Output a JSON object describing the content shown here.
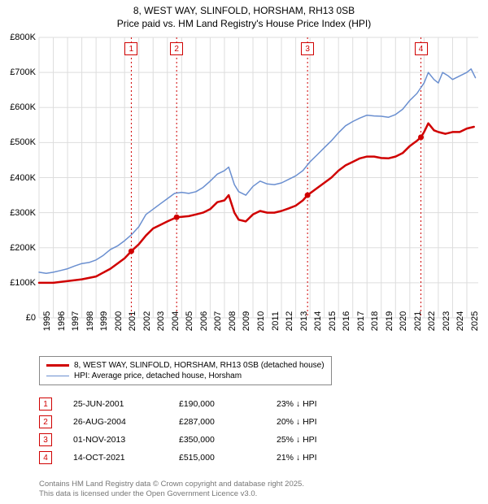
{
  "title_line1": "8, WEST WAY, SLINFOLD, HORSHAM, RH13 0SB",
  "title_line2": "Price paid vs. HM Land Registry's House Price Index (HPI)",
  "chart": {
    "x_min_year": 1995,
    "x_max_year": 2025.8,
    "x_ticks": [
      1995,
      1996,
      1997,
      1998,
      1999,
      2000,
      2001,
      2002,
      2003,
      2004,
      2005,
      2006,
      2007,
      2008,
      2009,
      2010,
      2011,
      2012,
      2013,
      2014,
      2015,
      2016,
      2017,
      2018,
      2019,
      2020,
      2021,
      2022,
      2023,
      2024,
      2025
    ],
    "y_min": 0,
    "y_max": 800000,
    "y_ticks": [
      0,
      100000,
      200000,
      300000,
      400000,
      500000,
      600000,
      700000,
      800000
    ],
    "y_tick_labels": [
      "£0",
      "£100K",
      "£200K",
      "£300K",
      "£400K",
      "£500K",
      "£600K",
      "£700K",
      "£800K"
    ],
    "grid_color": "#dddddd",
    "background_color": "#ffffff",
    "series_property": {
      "label": "8, WEST WAY, SLINFOLD, HORSHAM, RH13 0SB (detached house)",
      "color": "#d00000",
      "width": 2.5,
      "points": [
        [
          1995.0,
          100000
        ],
        [
          1996.0,
          100000
        ],
        [
          1997.0,
          105000
        ],
        [
          1998.0,
          110000
        ],
        [
          1999.0,
          118000
        ],
        [
          2000.0,
          140000
        ],
        [
          2000.5,
          155000
        ],
        [
          2001.0,
          170000
        ],
        [
          2001.47,
          190000
        ],
        [
          2002.0,
          210000
        ],
        [
          2002.5,
          235000
        ],
        [
          2003.0,
          255000
        ],
        [
          2003.5,
          265000
        ],
        [
          2004.0,
          275000
        ],
        [
          2004.65,
          287000
        ],
        [
          2005.0,
          288000
        ],
        [
          2005.5,
          290000
        ],
        [
          2006.0,
          295000
        ],
        [
          2006.5,
          300000
        ],
        [
          2007.0,
          310000
        ],
        [
          2007.5,
          330000
        ],
        [
          2008.0,
          335000
        ],
        [
          2008.3,
          350000
        ],
        [
          2008.7,
          300000
        ],
        [
          2009.0,
          280000
        ],
        [
          2009.5,
          275000
        ],
        [
          2010.0,
          295000
        ],
        [
          2010.5,
          305000
        ],
        [
          2011.0,
          300000
        ],
        [
          2011.5,
          300000
        ],
        [
          2012.0,
          305000
        ],
        [
          2012.5,
          312000
        ],
        [
          2013.0,
          320000
        ],
        [
          2013.5,
          335000
        ],
        [
          2013.83,
          350000
        ],
        [
          2014.5,
          370000
        ],
        [
          2015.0,
          385000
        ],
        [
          2015.5,
          400000
        ],
        [
          2016.0,
          420000
        ],
        [
          2016.5,
          435000
        ],
        [
          2017.0,
          445000
        ],
        [
          2017.5,
          455000
        ],
        [
          2018.0,
          460000
        ],
        [
          2018.5,
          460000
        ],
        [
          2019.0,
          456000
        ],
        [
          2019.5,
          455000
        ],
        [
          2020.0,
          460000
        ],
        [
          2020.5,
          470000
        ],
        [
          2021.0,
          490000
        ],
        [
          2021.5,
          505000
        ],
        [
          2021.78,
          515000
        ],
        [
          2022.0,
          530000
        ],
        [
          2022.3,
          555000
        ],
        [
          2022.7,
          535000
        ],
        [
          2023.0,
          530000
        ],
        [
          2023.5,
          525000
        ],
        [
          2024.0,
          530000
        ],
        [
          2024.5,
          530000
        ],
        [
          2025.0,
          540000
        ],
        [
          2025.5,
          545000
        ]
      ]
    },
    "series_hpi": {
      "label": "HPI: Average price, detached house, Horsham",
      "color": "#6a8fd0",
      "width": 1.5,
      "points": [
        [
          1995.0,
          130000
        ],
        [
          1995.5,
          127000
        ],
        [
          1996.0,
          130000
        ],
        [
          1996.5,
          135000
        ],
        [
          1997.0,
          140000
        ],
        [
          1997.5,
          148000
        ],
        [
          1998.0,
          155000
        ],
        [
          1998.5,
          158000
        ],
        [
          1999.0,
          165000
        ],
        [
          1999.5,
          178000
        ],
        [
          2000.0,
          195000
        ],
        [
          2000.5,
          205000
        ],
        [
          2001.0,
          220000
        ],
        [
          2001.5,
          238000
        ],
        [
          2002.0,
          260000
        ],
        [
          2002.5,
          295000
        ],
        [
          2003.0,
          310000
        ],
        [
          2003.5,
          325000
        ],
        [
          2004.0,
          340000
        ],
        [
          2004.5,
          355000
        ],
        [
          2005.0,
          358000
        ],
        [
          2005.5,
          355000
        ],
        [
          2006.0,
          360000
        ],
        [
          2006.5,
          372000
        ],
        [
          2007.0,
          390000
        ],
        [
          2007.5,
          410000
        ],
        [
          2008.0,
          420000
        ],
        [
          2008.3,
          430000
        ],
        [
          2008.7,
          380000
        ],
        [
          2009.0,
          360000
        ],
        [
          2009.5,
          350000
        ],
        [
          2010.0,
          375000
        ],
        [
          2010.5,
          390000
        ],
        [
          2011.0,
          382000
        ],
        [
          2011.5,
          380000
        ],
        [
          2012.0,
          385000
        ],
        [
          2012.5,
          395000
        ],
        [
          2013.0,
          405000
        ],
        [
          2013.5,
          420000
        ],
        [
          2014.0,
          445000
        ],
        [
          2014.5,
          465000
        ],
        [
          2015.0,
          485000
        ],
        [
          2015.5,
          505000
        ],
        [
          2016.0,
          528000
        ],
        [
          2016.5,
          548000
        ],
        [
          2017.0,
          560000
        ],
        [
          2017.5,
          570000
        ],
        [
          2018.0,
          578000
        ],
        [
          2018.5,
          576000
        ],
        [
          2019.0,
          575000
        ],
        [
          2019.5,
          572000
        ],
        [
          2020.0,
          580000
        ],
        [
          2020.5,
          595000
        ],
        [
          2021.0,
          620000
        ],
        [
          2021.5,
          640000
        ],
        [
          2022.0,
          670000
        ],
        [
          2022.3,
          700000
        ],
        [
          2022.7,
          680000
        ],
        [
          2023.0,
          670000
        ],
        [
          2023.3,
          700000
        ],
        [
          2023.7,
          690000
        ],
        [
          2024.0,
          680000
        ],
        [
          2024.5,
          690000
        ],
        [
          2025.0,
          700000
        ],
        [
          2025.3,
          710000
        ],
        [
          2025.6,
          685000
        ]
      ]
    },
    "sale_markers": [
      {
        "n": "1",
        "year": 2001.47,
        "price": 190000,
        "label_y": 20000
      },
      {
        "n": "2",
        "year": 2004.65,
        "price": 287000,
        "label_y": 20000
      },
      {
        "n": "3",
        "year": 2013.83,
        "price": 350000,
        "label_y": 20000
      },
      {
        "n": "4",
        "year": 2021.78,
        "price": 515000,
        "label_y": 20000
      }
    ],
    "marker_line_color": "#d00000"
  },
  "legend": {
    "rows": [
      {
        "color": "#d00000",
        "width": 2.5,
        "label": "8, WEST WAY, SLINFOLD, HORSHAM, RH13 0SB (detached house)"
      },
      {
        "color": "#6a8fd0",
        "width": 1.5,
        "label": "HPI: Average price, detached house, Horsham"
      }
    ]
  },
  "sales": [
    {
      "n": "1",
      "date": "25-JUN-2001",
      "price": "£190,000",
      "diff": "23% ↓ HPI"
    },
    {
      "n": "2",
      "date": "26-AUG-2004",
      "price": "£287,000",
      "diff": "20% ↓ HPI"
    },
    {
      "n": "3",
      "date": "01-NOV-2013",
      "price": "£350,000",
      "diff": "25% ↓ HPI"
    },
    {
      "n": "4",
      "date": "14-OCT-2021",
      "price": "£515,000",
      "diff": "21% ↓ HPI"
    }
  ],
  "footer_line1": "Contains HM Land Registry data © Crown copyright and database right 2025.",
  "footer_line2": "This data is licensed under the Open Government Licence v3.0."
}
